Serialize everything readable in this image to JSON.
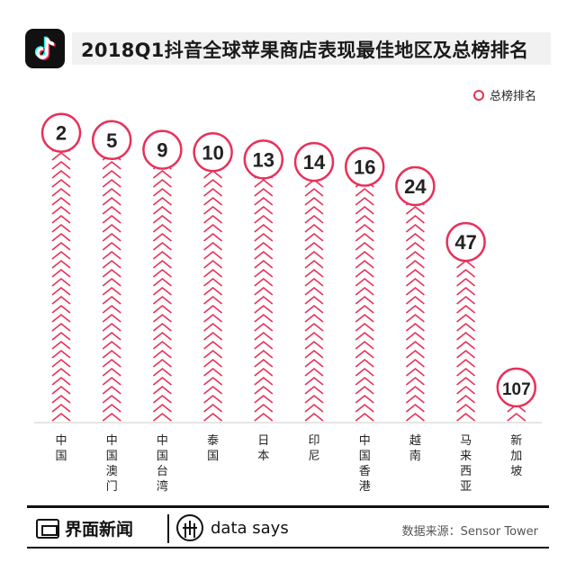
{
  "header": {
    "title": "2018Q1抖音全球苹果商店表现最佳地区及总榜排名",
    "logo_icon": "tiktok-note-icon"
  },
  "legend": {
    "label": "总榜排名"
  },
  "colors": {
    "accent": "#e8305a",
    "title_band": "#f1f1f1",
    "baseline": "#cccccc"
  },
  "chart_data": {
    "type": "bar",
    "categories": [
      "中国",
      "中国澳门",
      "中国台湾",
      "泰国",
      "日本",
      "印尼",
      "中国香港",
      "越南",
      "马来西亚",
      "新加坡"
    ],
    "series": [
      {
        "name": "总榜排名",
        "values": [
          2,
          5,
          9,
          10,
          13,
          14,
          16,
          24,
          47,
          107
        ]
      }
    ],
    "value_axis": "rank (lower rank = taller bar)",
    "grid": false,
    "legend_position": "top-right"
  },
  "footer": {
    "brand": "界面新闻",
    "partner": "data says",
    "source": "数据来源：Sensor Tower"
  }
}
